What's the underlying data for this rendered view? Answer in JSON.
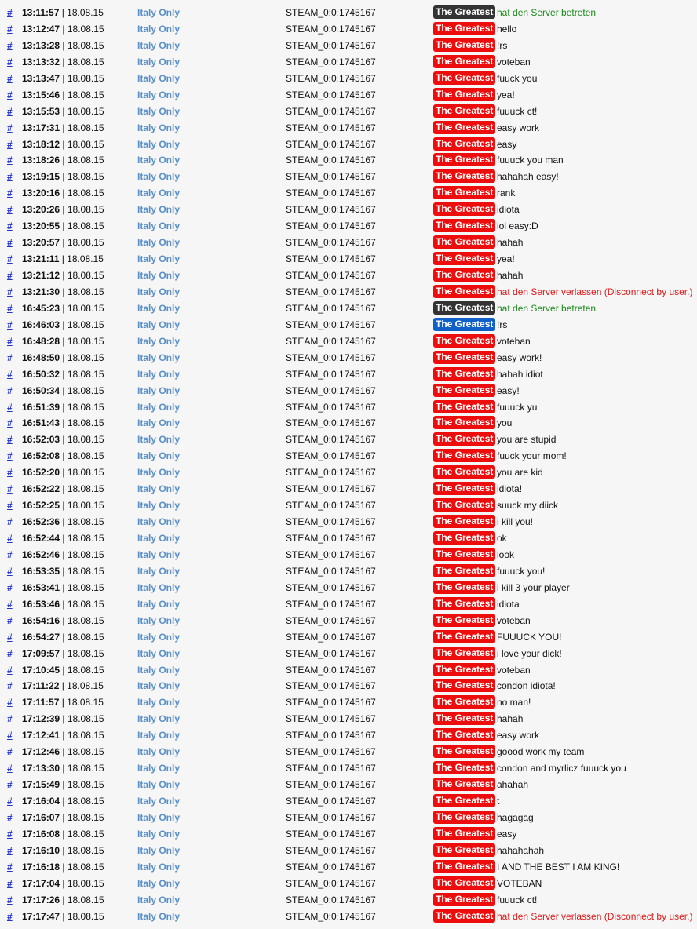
{
  "colors": {
    "t": "#ee0d0d",
    "ct": "#1060c8",
    "join": "#333333",
    "join_text": "#1a8a1a",
    "leave_text": "#e01818",
    "chat_text": "#111111"
  },
  "link_label": "#",
  "date_separator": " | ",
  "rows": [
    {
      "time": "13:11:57",
      "date": "18.08.15",
      "server": "Italy Only",
      "steam": "STEAM_0:0:1745167",
      "name": "The Greatest",
      "team": "join",
      "type": "join",
      "msg": "hat den Server betreten"
    },
    {
      "time": "13:12:47",
      "date": "18.08.15",
      "server": "Italy Only",
      "steam": "STEAM_0:0:1745167",
      "name": "The Greatest",
      "team": "t",
      "type": "chat",
      "msg": "hello"
    },
    {
      "time": "13:13:28",
      "date": "18.08.15",
      "server": "Italy Only",
      "steam": "STEAM_0:0:1745167",
      "name": "The Greatest",
      "team": "t",
      "type": "chat",
      "msg": "!rs"
    },
    {
      "time": "13:13:32",
      "date": "18.08.15",
      "server": "Italy Only",
      "steam": "STEAM_0:0:1745167",
      "name": "The Greatest",
      "team": "t",
      "type": "chat",
      "msg": "voteban"
    },
    {
      "time": "13:13:47",
      "date": "18.08.15",
      "server": "Italy Only",
      "steam": "STEAM_0:0:1745167",
      "name": "The Greatest",
      "team": "t",
      "type": "chat",
      "msg": "fuuck you"
    },
    {
      "time": "13:15:46",
      "date": "18.08.15",
      "server": "Italy Only",
      "steam": "STEAM_0:0:1745167",
      "name": "The Greatest",
      "team": "t",
      "type": "chat",
      "msg": "yea!"
    },
    {
      "time": "13:15:53",
      "date": "18.08.15",
      "server": "Italy Only",
      "steam": "STEAM_0:0:1745167",
      "name": "The Greatest",
      "team": "t",
      "type": "chat",
      "msg": "fuuuck ct!"
    },
    {
      "time": "13:17:31",
      "date": "18.08.15",
      "server": "Italy Only",
      "steam": "STEAM_0:0:1745167",
      "name": "The Greatest",
      "team": "t",
      "type": "chat",
      "msg": "easy work"
    },
    {
      "time": "13:18:12",
      "date": "18.08.15",
      "server": "Italy Only",
      "steam": "STEAM_0:0:1745167",
      "name": "The Greatest",
      "team": "t",
      "type": "chat",
      "msg": "easy"
    },
    {
      "time": "13:18:26",
      "date": "18.08.15",
      "server": "Italy Only",
      "steam": "STEAM_0:0:1745167",
      "name": "The Greatest",
      "team": "t",
      "type": "chat",
      "msg": "fuuuck you man"
    },
    {
      "time": "13:19:15",
      "date": "18.08.15",
      "server": "Italy Only",
      "steam": "STEAM_0:0:1745167",
      "name": "The Greatest",
      "team": "t",
      "type": "chat",
      "msg": "hahahah easy!"
    },
    {
      "time": "13:20:16",
      "date": "18.08.15",
      "server": "Italy Only",
      "steam": "STEAM_0:0:1745167",
      "name": "The Greatest",
      "team": "t",
      "type": "chat",
      "msg": "rank"
    },
    {
      "time": "13:20:26",
      "date": "18.08.15",
      "server": "Italy Only",
      "steam": "STEAM_0:0:1745167",
      "name": "The Greatest",
      "team": "t",
      "type": "chat",
      "msg": "idiota"
    },
    {
      "time": "13:20:55",
      "date": "18.08.15",
      "server": "Italy Only",
      "steam": "STEAM_0:0:1745167",
      "name": "The Greatest",
      "team": "t",
      "type": "chat",
      "msg": "lol easy:D"
    },
    {
      "time": "13:20:57",
      "date": "18.08.15",
      "server": "Italy Only",
      "steam": "STEAM_0:0:1745167",
      "name": "The Greatest",
      "team": "t",
      "type": "chat",
      "msg": "hahah"
    },
    {
      "time": "13:21:11",
      "date": "18.08.15",
      "server": "Italy Only",
      "steam": "STEAM_0:0:1745167",
      "name": "The Greatest",
      "team": "t",
      "type": "chat",
      "msg": "yea!"
    },
    {
      "time": "13:21:12",
      "date": "18.08.15",
      "server": "Italy Only",
      "steam": "STEAM_0:0:1745167",
      "name": "The Greatest",
      "team": "t",
      "type": "chat",
      "msg": "hahah"
    },
    {
      "time": "13:21:30",
      "date": "18.08.15",
      "server": "Italy Only",
      "steam": "STEAM_0:0:1745167",
      "name": "The Greatest",
      "team": "t",
      "type": "leave",
      "msg": "hat den Server verlassen (Disconnect by user.)"
    },
    {
      "time": "16:45:23",
      "date": "18.08.15",
      "server": "Italy Only",
      "steam": "STEAM_0:0:1745167",
      "name": "The Greatest",
      "team": "join",
      "type": "join",
      "msg": "hat den Server betreten"
    },
    {
      "time": "16:46:03",
      "date": "18.08.15",
      "server": "Italy Only",
      "steam": "STEAM_0:0:1745167",
      "name": "The Greatest",
      "team": "ct",
      "type": "chat",
      "msg": "!rs"
    },
    {
      "time": "16:48:28",
      "date": "18.08.15",
      "server": "Italy Only",
      "steam": "STEAM_0:0:1745167",
      "name": "The Greatest",
      "team": "t",
      "type": "chat",
      "msg": "voteban"
    },
    {
      "time": "16:48:50",
      "date": "18.08.15",
      "server": "Italy Only",
      "steam": "STEAM_0:0:1745167",
      "name": "The Greatest",
      "team": "t",
      "type": "chat",
      "msg": "easy work!"
    },
    {
      "time": "16:50:32",
      "date": "18.08.15",
      "server": "Italy Only",
      "steam": "STEAM_0:0:1745167",
      "name": "The Greatest",
      "team": "t",
      "type": "chat",
      "msg": "hahah idiot"
    },
    {
      "time": "16:50:34",
      "date": "18.08.15",
      "server": "Italy Only",
      "steam": "STEAM_0:0:1745167",
      "name": "The Greatest",
      "team": "t",
      "type": "chat",
      "msg": "easy!"
    },
    {
      "time": "16:51:39",
      "date": "18.08.15",
      "server": "Italy Only",
      "steam": "STEAM_0:0:1745167",
      "name": "The Greatest",
      "team": "t",
      "type": "chat",
      "msg": "fuuuck yu"
    },
    {
      "time": "16:51:43",
      "date": "18.08.15",
      "server": "Italy Only",
      "steam": "STEAM_0:0:1745167",
      "name": "The Greatest",
      "team": "t",
      "type": "chat",
      "msg": "you"
    },
    {
      "time": "16:52:03",
      "date": "18.08.15",
      "server": "Italy Only",
      "steam": "STEAM_0:0:1745167",
      "name": "The Greatest",
      "team": "t",
      "type": "chat",
      "msg": "you are stupid"
    },
    {
      "time": "16:52:08",
      "date": "18.08.15",
      "server": "Italy Only",
      "steam": "STEAM_0:0:1745167",
      "name": "The Greatest",
      "team": "t",
      "type": "chat",
      "msg": "fuuck your mom!"
    },
    {
      "time": "16:52:20",
      "date": "18.08.15",
      "server": "Italy Only",
      "steam": "STEAM_0:0:1745167",
      "name": "The Greatest",
      "team": "t",
      "type": "chat",
      "msg": "you are kid"
    },
    {
      "time": "16:52:22",
      "date": "18.08.15",
      "server": "Italy Only",
      "steam": "STEAM_0:0:1745167",
      "name": "The Greatest",
      "team": "t",
      "type": "chat",
      "msg": "idiota!"
    },
    {
      "time": "16:52:25",
      "date": "18.08.15",
      "server": "Italy Only",
      "steam": "STEAM_0:0:1745167",
      "name": "The Greatest",
      "team": "t",
      "type": "chat",
      "msg": "suuck my diick"
    },
    {
      "time": "16:52:36",
      "date": "18.08.15",
      "server": "Italy Only",
      "steam": "STEAM_0:0:1745167",
      "name": "The Greatest",
      "team": "t",
      "type": "chat",
      "msg": "i kill you!"
    },
    {
      "time": "16:52:44",
      "date": "18.08.15",
      "server": "Italy Only",
      "steam": "STEAM_0:0:1745167",
      "name": "The Greatest",
      "team": "t",
      "type": "chat",
      "msg": "ok"
    },
    {
      "time": "16:52:46",
      "date": "18.08.15",
      "server": "Italy Only",
      "steam": "STEAM_0:0:1745167",
      "name": "The Greatest",
      "team": "t",
      "type": "chat",
      "msg": "look"
    },
    {
      "time": "16:53:35",
      "date": "18.08.15",
      "server": "Italy Only",
      "steam": "STEAM_0:0:1745167",
      "name": "The Greatest",
      "team": "t",
      "type": "chat",
      "msg": "fuuuck you!"
    },
    {
      "time": "16:53:41",
      "date": "18.08.15",
      "server": "Italy Only",
      "steam": "STEAM_0:0:1745167",
      "name": "The Greatest",
      "team": "t",
      "type": "chat",
      "msg": "i kill 3 your player"
    },
    {
      "time": "16:53:46",
      "date": "18.08.15",
      "server": "Italy Only",
      "steam": "STEAM_0:0:1745167",
      "name": "The Greatest",
      "team": "t",
      "type": "chat",
      "msg": "idiota"
    },
    {
      "time": "16:54:16",
      "date": "18.08.15",
      "server": "Italy Only",
      "steam": "STEAM_0:0:1745167",
      "name": "The Greatest",
      "team": "t",
      "type": "chat",
      "msg": "voteban"
    },
    {
      "time": "16:54:27",
      "date": "18.08.15",
      "server": "Italy Only",
      "steam": "STEAM_0:0:1745167",
      "name": "The Greatest",
      "team": "t",
      "type": "chat",
      "msg": "FUUUCK YOU!"
    },
    {
      "time": "17:09:57",
      "date": "18.08.15",
      "server": "Italy Only",
      "steam": "STEAM_0:0:1745167",
      "name": "The Greatest",
      "team": "t",
      "type": "chat",
      "msg": "i love your dick!"
    },
    {
      "time": "17:10:45",
      "date": "18.08.15",
      "server": "Italy Only",
      "steam": "STEAM_0:0:1745167",
      "name": "The Greatest",
      "team": "t",
      "type": "chat",
      "msg": "voteban"
    },
    {
      "time": "17:11:22",
      "date": "18.08.15",
      "server": "Italy Only",
      "steam": "STEAM_0:0:1745167",
      "name": "The Greatest",
      "team": "t",
      "type": "chat",
      "msg": "condon idiota!"
    },
    {
      "time": "17:11:57",
      "date": "18.08.15",
      "server": "Italy Only",
      "steam": "STEAM_0:0:1745167",
      "name": "The Greatest",
      "team": "t",
      "type": "chat",
      "msg": "no man!"
    },
    {
      "time": "17:12:39",
      "date": "18.08.15",
      "server": "Italy Only",
      "steam": "STEAM_0:0:1745167",
      "name": "The Greatest",
      "team": "t",
      "type": "chat",
      "msg": "hahah"
    },
    {
      "time": "17:12:41",
      "date": "18.08.15",
      "server": "Italy Only",
      "steam": "STEAM_0:0:1745167",
      "name": "The Greatest",
      "team": "t",
      "type": "chat",
      "msg": "easy work"
    },
    {
      "time": "17:12:46",
      "date": "18.08.15",
      "server": "Italy Only",
      "steam": "STEAM_0:0:1745167",
      "name": "The Greatest",
      "team": "t",
      "type": "chat",
      "msg": "goood work my team"
    },
    {
      "time": "17:13:30",
      "date": "18.08.15",
      "server": "Italy Only",
      "steam": "STEAM_0:0:1745167",
      "name": "The Greatest",
      "team": "t",
      "type": "chat",
      "msg": "condon and myrlicz fuuuck you"
    },
    {
      "time": "17:15:49",
      "date": "18.08.15",
      "server": "Italy Only",
      "steam": "STEAM_0:0:1745167",
      "name": "The Greatest",
      "team": "t",
      "type": "chat",
      "msg": "ahahah"
    },
    {
      "time": "17:16:04",
      "date": "18.08.15",
      "server": "Italy Only",
      "steam": "STEAM_0:0:1745167",
      "name": "The Greatest",
      "team": "t",
      "type": "chat",
      "msg": "t"
    },
    {
      "time": "17:16:07",
      "date": "18.08.15",
      "server": "Italy Only",
      "steam": "STEAM_0:0:1745167",
      "name": "The Greatest",
      "team": "t",
      "type": "chat",
      "msg": "hagagag"
    },
    {
      "time": "17:16:08",
      "date": "18.08.15",
      "server": "Italy Only",
      "steam": "STEAM_0:0:1745167",
      "name": "The Greatest",
      "team": "t",
      "type": "chat",
      "msg": "easy"
    },
    {
      "time": "17:16:10",
      "date": "18.08.15",
      "server": "Italy Only",
      "steam": "STEAM_0:0:1745167",
      "name": "The Greatest",
      "team": "t",
      "type": "chat",
      "msg": "hahahahah"
    },
    {
      "time": "17:16:18",
      "date": "18.08.15",
      "server": "Italy Only",
      "steam": "STEAM_0:0:1745167",
      "name": "The Greatest",
      "team": "t",
      "type": "chat",
      "msg": "I AND THE BEST I AM KING!"
    },
    {
      "time": "17:17:04",
      "date": "18.08.15",
      "server": "Italy Only",
      "steam": "STEAM_0:0:1745167",
      "name": "The Greatest",
      "team": "t",
      "type": "chat",
      "msg": "VOTEBAN"
    },
    {
      "time": "17:17:26",
      "date": "18.08.15",
      "server": "Italy Only",
      "steam": "STEAM_0:0:1745167",
      "name": "The Greatest",
      "team": "t",
      "type": "chat",
      "msg": "fuuuck ct!"
    },
    {
      "time": "17:17:47",
      "date": "18.08.15",
      "server": "Italy Only",
      "steam": "STEAM_0:0:1745167",
      "name": "The Greatest",
      "team": "t",
      "type": "leave",
      "msg": "hat den Server verlassen (Disconnect by user.)"
    }
  ]
}
